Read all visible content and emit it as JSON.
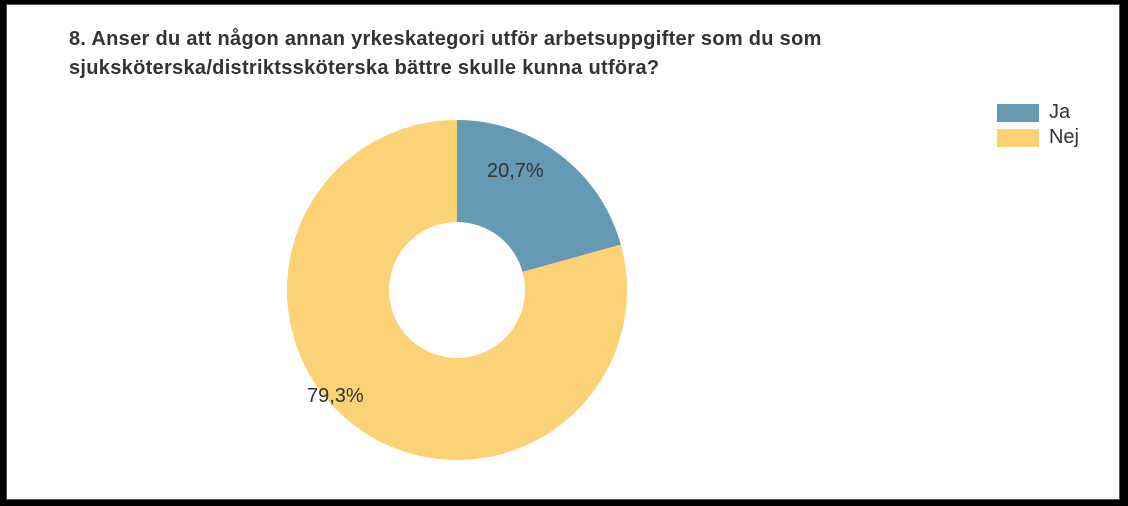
{
  "title": "8. Anser du att någon annan yrkeskategori utför arbetsuppgifter som du som sjuksköterska/distriktssköterska bättre skulle kunna utföra?",
  "chart": {
    "type": "donut",
    "background_color": "#ffffff",
    "label_fontsize": 20,
    "label_color": "#333333",
    "title_fontsize": 20,
    "title_weight": "bold",
    "inner_radius_ratio": 0.4,
    "series": [
      {
        "name": "Ja",
        "value": 20.7,
        "label": "20,7%",
        "color": "#6699b3"
      },
      {
        "name": "Nej",
        "value": 79.3,
        "label": "79,3%",
        "color": "#fcd277"
      }
    ],
    "start_angle_deg": -90
  },
  "legend": {
    "items": [
      {
        "label": "Ja",
        "color": "#6699b3"
      },
      {
        "label": "Nej",
        "color": "#fcd277"
      }
    ],
    "fontsize": 20,
    "swatch_w": 42,
    "swatch_h": 18
  }
}
